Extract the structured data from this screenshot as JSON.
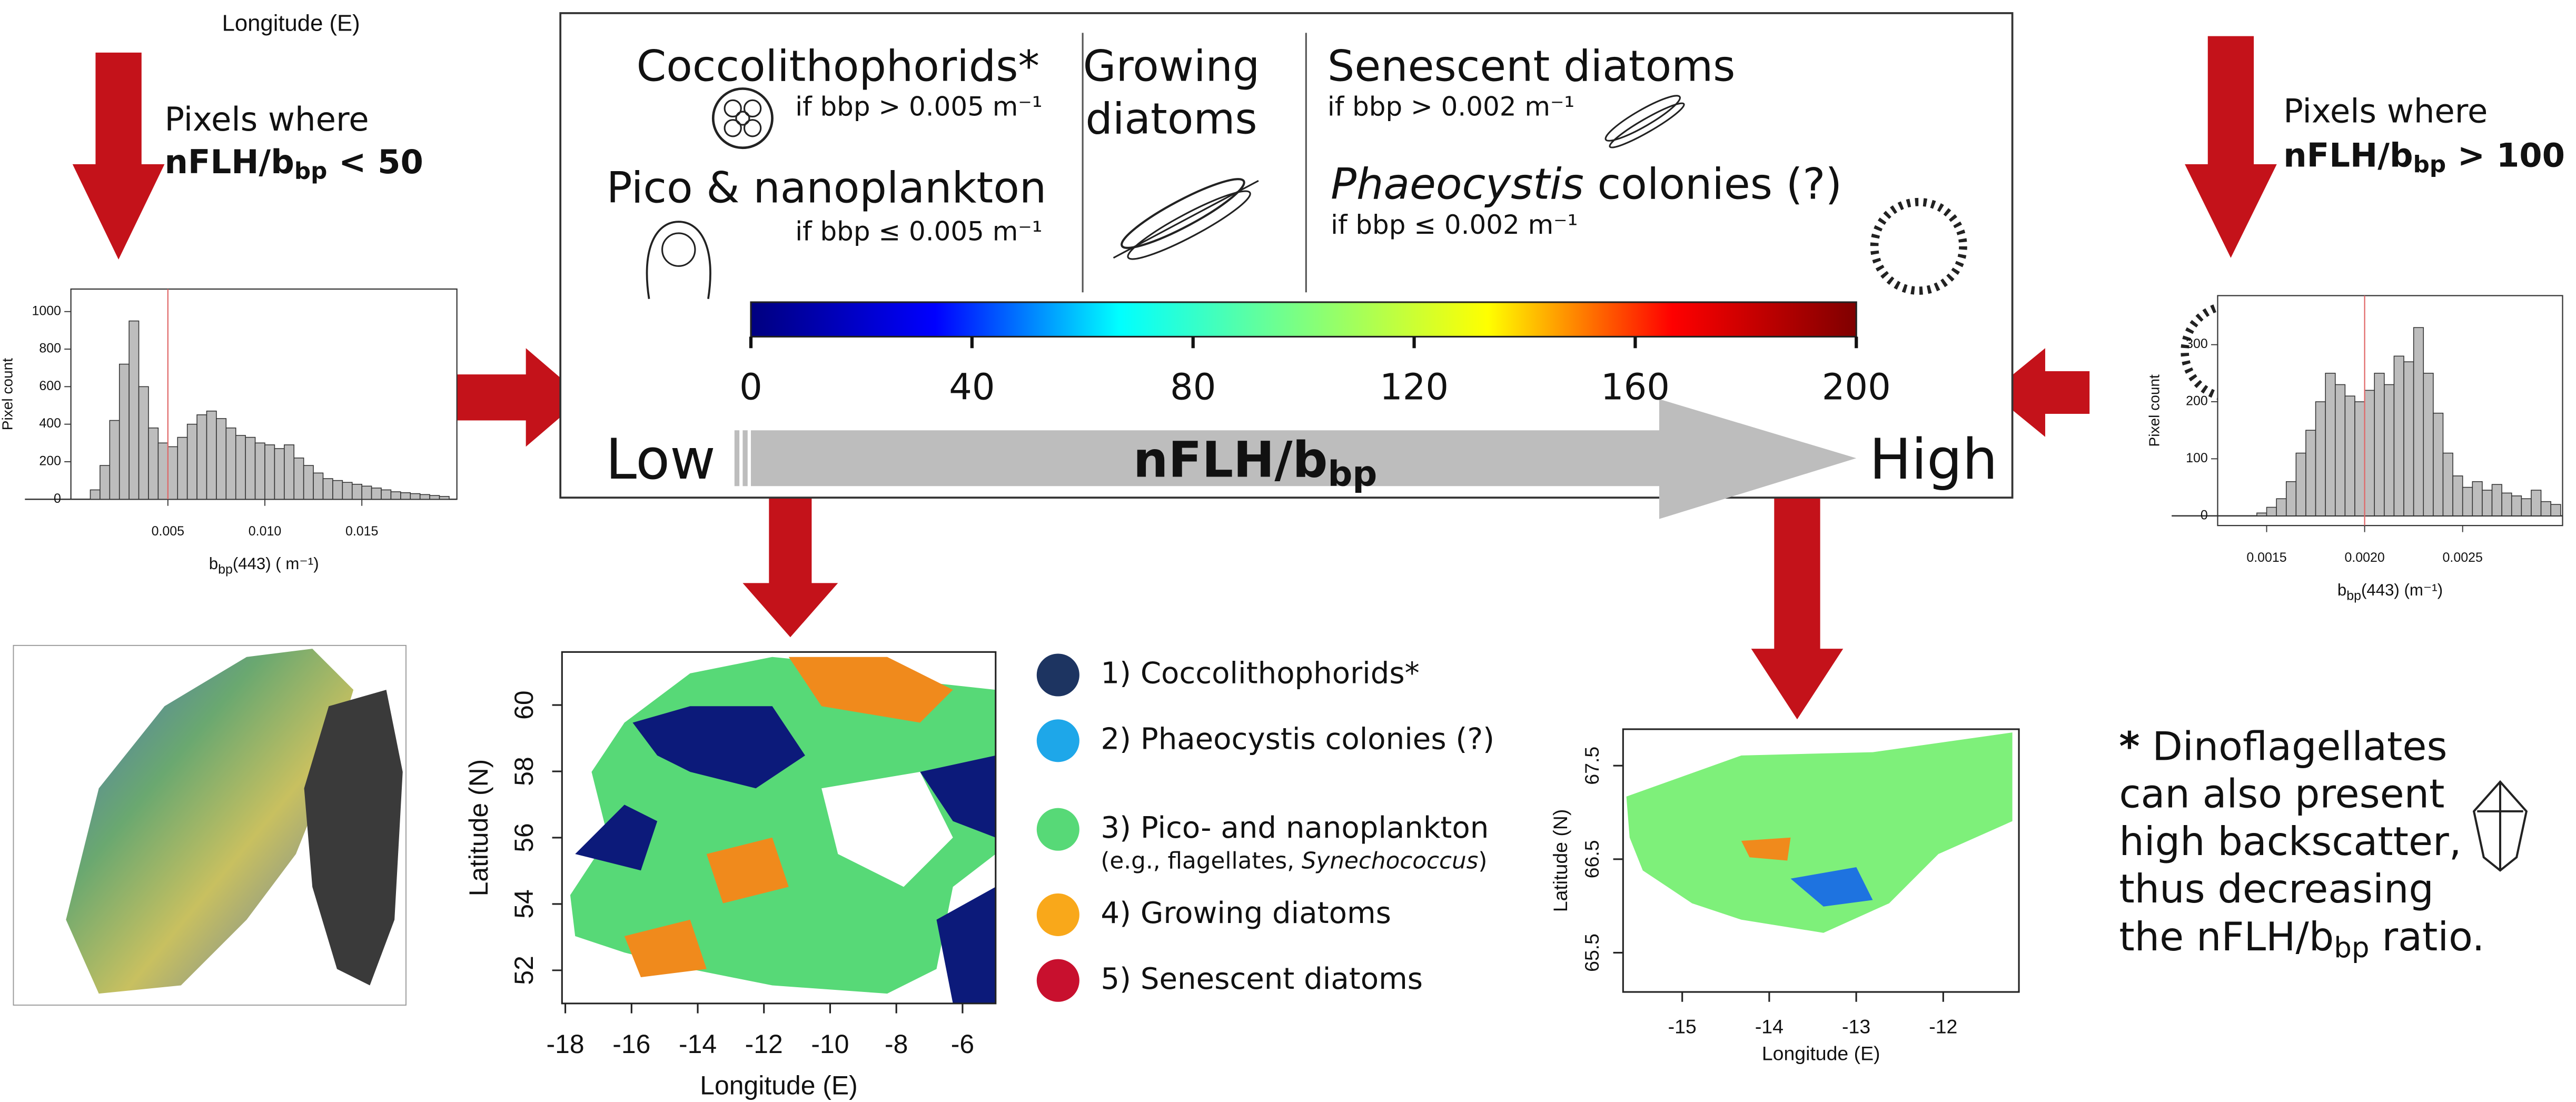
{
  "header": {
    "longitude_label": "Longitude (E)"
  },
  "left_filter": {
    "line1": "Pixels where",
    "ratio": "nFLH/b",
    "sub": "bp",
    "condition": " < 50"
  },
  "right_filter": {
    "line1": "Pixels where",
    "ratio": "nFLH/b",
    "sub": "bp",
    "condition": " > 100"
  },
  "scheme": {
    "coccolithophorids": "Coccolithophorids*",
    "coccolithophorids_condition": "if bbp > 0.005 m⁻¹",
    "pico": "Pico & nanoplankton",
    "pico_condition": "if bbp ≤ 0.005 m⁻¹",
    "growing_line1": "Growing",
    "growing_line2": "diatoms",
    "senescent": "Senescent diatoms",
    "senescent_condition": "if bbp > 0.002 m⁻¹",
    "phaeocystis_italic": "Phaeocystis",
    "phaeocystis_rest": " colonies (?)",
    "phaeocystis_condition": "if bbp ≤ 0.002 m⁻¹",
    "low": "Low",
    "high": "High",
    "axis_ratio": "nFLH/b",
    "axis_sub": "bp"
  },
  "legend": [
    {
      "label": "1) Coccolithophorids*",
      "color": "#1d3461"
    },
    {
      "label": "2) Phaeocystis colonies (?)",
      "color": "#1ea7e9"
    },
    {
      "label": "3) Pico- and nanoplankton",
      "color": "#57d977",
      "note_prefix": "(e.g., flagellates, ",
      "note_italic": "Synechococcus",
      "note_suffix": ")"
    },
    {
      "label": "4) Growing diatoms",
      "color": "#f9a81a"
    },
    {
      "label": "5) Senescent diatoms",
      "color": "#c8102e"
    }
  ],
  "footnote": {
    "star": "*",
    "line1": " Dinoflagellates",
    "line2": "can also present",
    "line3": "high backscatter,",
    "line4": "thus decreasing",
    "line5_prefix": "the nFLH/b",
    "line5_sub": "bp",
    "line5_suffix": " ratio."
  },
  "chart_data": [
    {
      "type": "histogram",
      "ylabel": "Pixel count",
      "xlabel_main": "b",
      "xlabel_sub": "bp",
      "xlabel_rest": "(443) ( m⁻¹)",
      "bins": [
        0.001,
        0.0015,
        0.002,
        0.0025,
        0.003,
        0.0035,
        0.004,
        0.0045,
        0.005,
        0.0055,
        0.006,
        0.0065,
        0.007,
        0.0075,
        0.008,
        0.0085,
        0.009,
        0.0095,
        0.01,
        0.0105,
        0.011,
        0.0115,
        0.012,
        0.0125,
        0.013,
        0.0135,
        0.014,
        0.0145,
        0.015,
        0.0155,
        0.016,
        0.0165,
        0.017,
        0.0175,
        0.018,
        0.0185,
        0.019,
        0.0195
      ],
      "values": [
        50,
        180,
        420,
        720,
        950,
        600,
        380,
        300,
        280,
        330,
        400,
        450,
        470,
        430,
        380,
        340,
        330,
        300,
        290,
        270,
        290,
        220,
        180,
        140,
        110,
        100,
        90,
        80,
        70,
        60,
        50,
        40,
        35,
        30,
        25,
        20,
        15
      ],
      "color": "#bdbdbd",
      "xlim": [
        0,
        0.0199
      ],
      "ylim": [
        0,
        1120
      ],
      "xticks": [
        0.005,
        {
          "value": 0.01,
          "label": "0.010"
        },
        0.015
      ],
      "yticks": [
        0,
        200,
        400,
        600,
        800,
        1000
      ],
      "threshold": 0.005,
      "threshold_color": "#e06666"
    },
    {
      "type": "colorbar",
      "colors": [
        "#00007f",
        "#0000ff",
        "#00ffff",
        "#7fff7f",
        "#ffff00",
        "#ff0000",
        "#7f0000"
      ],
      "xlim": [
        0,
        200
      ],
      "xticks": [
        0,
        40,
        80,
        120,
        160,
        200
      ]
    },
    {
      "type": "histogram",
      "ylabel": "Pixel count",
      "xlabel_main": "b",
      "xlabel_sub": "bp",
      "xlabel_rest": "(443) (m⁻¹)",
      "bins": [
        0.00145,
        0.0015,
        0.00155,
        0.0016,
        0.00165,
        0.0017,
        0.00175,
        0.0018,
        0.00185,
        0.0019,
        0.00195,
        0.002,
        0.00205,
        0.0021,
        0.00215,
        0.0022,
        0.00225,
        0.0023,
        0.00235,
        0.0024,
        0.00245,
        0.0025,
        0.00255,
        0.0026,
        0.00265,
        0.0027,
        0.00275,
        0.0028,
        0.00285,
        0.0029,
        0.00295,
        0.003
      ],
      "values": [
        5,
        15,
        30,
        60,
        110,
        150,
        200,
        250,
        230,
        210,
        200,
        220,
        250,
        230,
        280,
        270,
        330,
        250,
        180,
        110,
        70,
        50,
        60,
        45,
        55,
        40,
        35,
        30,
        45,
        25,
        20
      ],
      "color": "#bdbdbd",
      "xlim": [
        0.00125,
        0.00301
      ],
      "ylim": [
        -17,
        386
      ],
      "xticks": [
        0.0015,
        {
          "value": 0.002,
          "label": "0.0020"
        },
        0.0025
      ],
      "yticks": [
        0,
        100,
        200,
        300
      ],
      "threshold": 0.002,
      "threshold_color": "#e06666"
    },
    {
      "type": "map",
      "xlabel": "Longitude (E)",
      "ylabel": "Latitude (N)",
      "xlim": [
        -18.1,
        -5
      ],
      "ylim": [
        51,
        61.6
      ],
      "xticks": [
        -18,
        -16,
        -14,
        -12,
        -10,
        -8,
        -6
      ],
      "yticks": [
        52,
        54,
        56,
        58,
        60
      ]
    },
    {
      "type": "map",
      "xlabel": "Longitude (E)",
      "ylabel": "Latitude (N)",
      "xlim": [
        -15.68,
        -11.13
      ],
      "ylim": [
        65.08,
        67.89
      ],
      "xticks": [
        -15,
        -14,
        -13,
        -12
      ],
      "yticks": [
        65.5,
        66.5,
        67.5
      ]
    }
  ]
}
